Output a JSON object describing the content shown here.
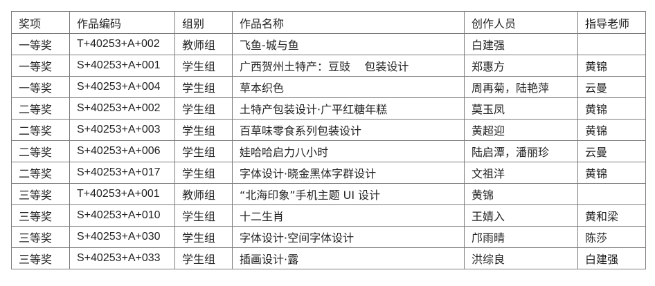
{
  "headers": [
    "奖项",
    "作品编码",
    "组别",
    "作品名称",
    "创作人员",
    "指导老师"
  ],
  "rows": [
    [
      "一等奖",
      "T+40253+A+002",
      "教师组",
      "飞鱼-城与鱼",
      "白建强",
      ""
    ],
    [
      "一等奖",
      "S+40253+A+001",
      "学生组",
      "广西贺州土特产：豆豉    包装设计",
      "郑惠方",
      "黄锦"
    ],
    [
      "一等奖",
      "S+40253+A+004",
      "学生组",
      "草本织色",
      "周再菊，陆艳萍",
      "云曼"
    ],
    [
      "二等奖",
      "S+40253+A+002",
      "学生组",
      "土特产包装设计·广平红糖年糕",
      "莫玉凤",
      "黄锦"
    ],
    [
      "二等奖",
      "S+40253+A+003",
      "学生组",
      "百草味零食系列包装设计",
      "黄超迎",
      "黄锦"
    ],
    [
      "二等奖",
      "S+40253+A+006",
      "学生组",
      "娃哈哈启力八小时",
      "陆启潭，潘丽珍",
      "云曼"
    ],
    [
      "二等奖",
      "S+40253+A+017",
      "学生组",
      "字体设计·晓金黑体字群设计",
      "文祖洋",
      "黄锦"
    ],
    [
      "三等奖",
      "T+40253+A+001",
      "教师组",
      "“北海印象”手机主题 UI 设计",
      "黄锦",
      ""
    ],
    [
      "三等奖",
      "S+40253+A+010",
      "学生组",
      "十二生肖",
      "王婧入",
      "黄和梁"
    ],
    [
      "三等奖",
      "S+40253+A+030",
      "学生组",
      "字体设计·空间字体设计",
      "邝雨晴",
      "陈莎"
    ],
    [
      "三等奖",
      "S+40253+A+033",
      "学生组",
      "插画设计·露",
      "洪综良",
      "白建强"
    ]
  ]
}
